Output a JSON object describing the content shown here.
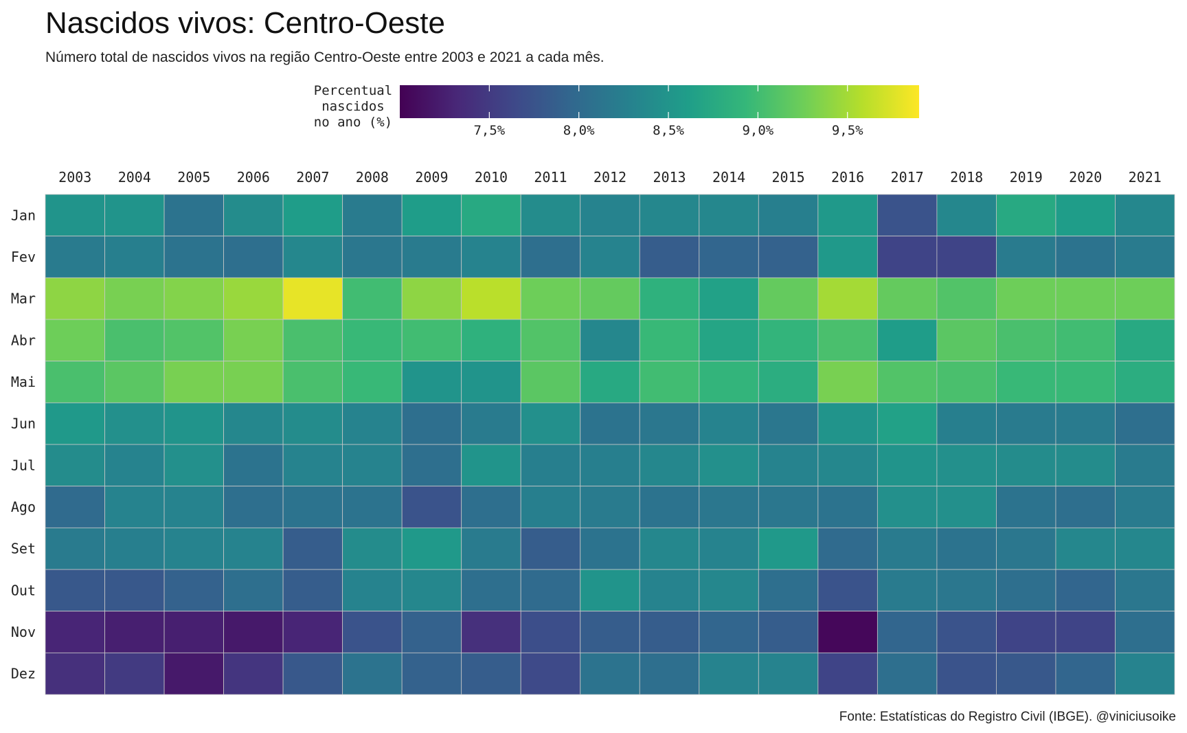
{
  "chart_data": {
    "type": "heatmap",
    "title": "Nascidos vivos: Centro-Oeste",
    "subtitle": "Número total de nascidos vivos na região Centro-Oeste entre 2003 e 2021 a cada mês.",
    "caption": "Fonte: Estatísticas do Registro Civil (IBGE). @viniciusoike",
    "legend": {
      "title_lines": [
        "Percentual",
        "nascidos",
        "no ano (%)"
      ],
      "tick_labels": [
        "7,5%",
        "8,0%",
        "8,5%",
        "9,0%",
        "9,5%"
      ],
      "tick_values": [
        7.5,
        8.0,
        8.5,
        9.0,
        9.5
      ],
      "min": 7.0,
      "max": 9.9,
      "placement": "top"
    },
    "colormap": [
      "#440154",
      "#482878",
      "#3e4989",
      "#31688e",
      "#26828e",
      "#1f9e89",
      "#35b779",
      "#6ece58",
      "#b5de2b",
      "#fde725"
    ],
    "x": [
      "2003",
      "2004",
      "2005",
      "2006",
      "2007",
      "2008",
      "2009",
      "2010",
      "2011",
      "2012",
      "2013",
      "2014",
      "2015",
      "2016",
      "2017",
      "2018",
      "2019",
      "2020",
      "2021"
    ],
    "y": [
      "Jan",
      "Fev",
      "Mar",
      "Abr",
      "Mai",
      "Jun",
      "Jul",
      "Ago",
      "Set",
      "Out",
      "Nov",
      "Dez"
    ],
    "values": [
      [
        8.5,
        8.5,
        8.1,
        8.4,
        8.6,
        8.2,
        8.6,
        8.75,
        8.4,
        8.3,
        8.35,
        8.35,
        8.25,
        8.55,
        7.75,
        8.35,
        8.75,
        8.6,
        8.35
      ],
      [
        8.2,
        8.25,
        8.1,
        8.05,
        8.35,
        8.15,
        8.2,
        8.3,
        8.05,
        8.3,
        7.85,
        7.95,
        7.9,
        8.55,
        7.6,
        7.6,
        8.2,
        8.1,
        8.2
      ],
      [
        9.4,
        9.3,
        9.35,
        9.45,
        9.8,
        9.0,
        9.4,
        9.6,
        9.25,
        9.2,
        8.85,
        8.65,
        9.2,
        9.5,
        9.2,
        9.1,
        9.25,
        9.25,
        9.25
      ],
      [
        9.25,
        9.05,
        9.1,
        9.3,
        9.05,
        8.95,
        9.0,
        8.85,
        9.1,
        8.35,
        8.95,
        8.7,
        8.9,
        9.05,
        8.6,
        9.15,
        9.05,
        9.0,
        8.75
      ],
      [
        9.05,
        9.15,
        9.3,
        9.3,
        9.05,
        8.95,
        8.5,
        8.5,
        9.15,
        8.75,
        9.0,
        8.9,
        8.8,
        9.3,
        9.1,
        9.05,
        8.95,
        8.95,
        8.8
      ],
      [
        8.55,
        8.45,
        8.5,
        8.35,
        8.4,
        8.3,
        8.05,
        8.2,
        8.45,
        8.1,
        8.15,
        8.3,
        8.15,
        8.5,
        8.65,
        8.25,
        8.2,
        8.2,
        8.05
      ],
      [
        8.4,
        8.3,
        8.45,
        8.1,
        8.3,
        8.3,
        8.05,
        8.5,
        8.25,
        8.25,
        8.35,
        8.45,
        8.3,
        8.35,
        8.5,
        8.45,
        8.4,
        8.4,
        8.2
      ],
      [
        8.0,
        8.3,
        8.3,
        8.05,
        8.1,
        8.1,
        7.75,
        8.05,
        8.25,
        8.2,
        8.1,
        8.15,
        8.15,
        8.1,
        8.45,
        8.45,
        8.1,
        8.05,
        8.2
      ],
      [
        8.2,
        8.25,
        8.3,
        8.3,
        7.85,
        8.4,
        8.55,
        8.2,
        7.85,
        8.1,
        8.35,
        8.3,
        8.55,
        8.0,
        8.2,
        8.1,
        8.15,
        8.35,
        8.35
      ],
      [
        7.8,
        7.8,
        7.9,
        8.05,
        7.85,
        8.3,
        8.35,
        8.05,
        8.0,
        8.5,
        8.3,
        8.35,
        8.05,
        7.75,
        8.2,
        8.15,
        8.05,
        7.95,
        8.15
      ],
      [
        7.3,
        7.25,
        7.25,
        7.2,
        7.3,
        7.75,
        7.9,
        7.4,
        7.7,
        7.85,
        7.85,
        7.95,
        7.85,
        7.05,
        7.95,
        7.75,
        7.6,
        7.6,
        8.05
      ],
      [
        7.4,
        7.5,
        7.2,
        7.45,
        7.8,
        8.1,
        7.9,
        7.85,
        7.65,
        8.1,
        8.05,
        8.3,
        8.3,
        7.6,
        8.05,
        7.75,
        7.8,
        7.95,
        8.3
      ]
    ]
  }
}
